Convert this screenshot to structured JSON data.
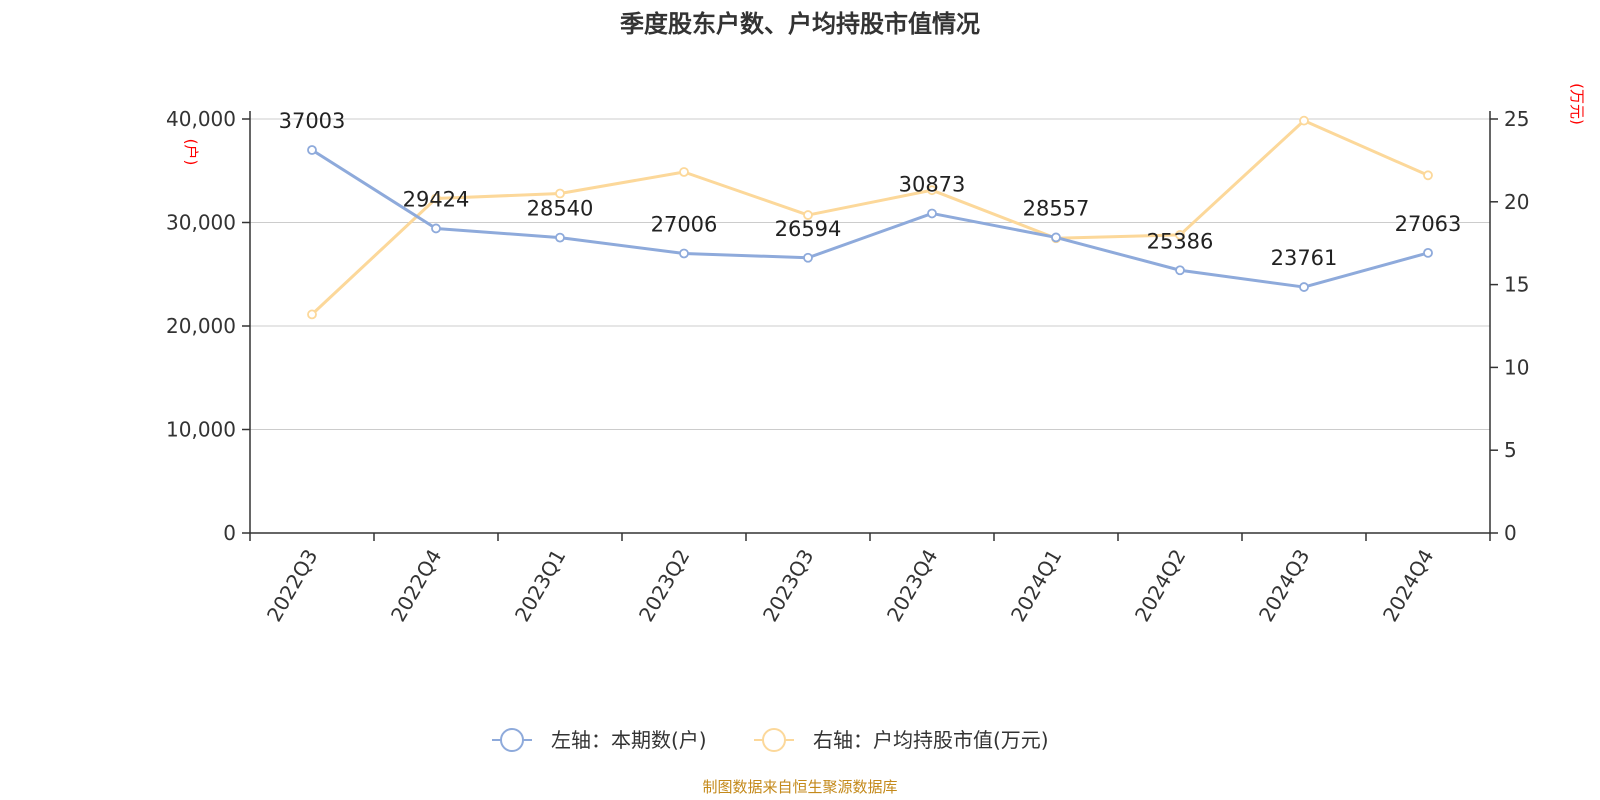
{
  "chart_data": {
    "type": "line",
    "title": "季度股东户数、户均持股市值情况",
    "categories": [
      "2022Q3",
      "2022Q4",
      "2023Q1",
      "2023Q2",
      "2023Q3",
      "2023Q4",
      "2024Q1",
      "2024Q2",
      "2024Q3",
      "2024Q4"
    ],
    "left_axis": {
      "unit": "(户)",
      "ylim": [
        0,
        40000
      ],
      "ticks": [
        0,
        10000,
        20000,
        30000,
        40000
      ],
      "tick_labels": [
        "0",
        "10,000",
        "20,000",
        "30,000",
        "40,000"
      ]
    },
    "right_axis": {
      "unit": "(万元)",
      "ylim": [
        0,
        25
      ],
      "ticks": [
        0,
        5,
        10,
        15,
        20,
        25
      ],
      "tick_labels": [
        "0",
        "5",
        "10",
        "15",
        "20",
        "25"
      ]
    },
    "series": [
      {
        "name": "左轴：本期数(户)",
        "axis": "left",
        "color": "#8eaadb",
        "values": [
          37003,
          29424,
          28540,
          27006,
          26594,
          30873,
          28557,
          25386,
          23761,
          27063
        ],
        "labels": [
          "37003",
          "29424",
          "28540",
          "27006",
          "26594",
          "30873",
          "28557",
          "25386",
          "23761",
          "27063"
        ]
      },
      {
        "name": "右轴：户均持股市值(万元)",
        "axis": "right",
        "color": "#fcd89a",
        "values": [
          13.2,
          20.2,
          20.5,
          21.8,
          19.2,
          20.7,
          17.8,
          18.0,
          24.9,
          21.6
        ]
      }
    ],
    "grid": true,
    "legend_position": "bottom-center"
  },
  "footer": {
    "source": "制图数据来自恒生聚源数据库"
  }
}
